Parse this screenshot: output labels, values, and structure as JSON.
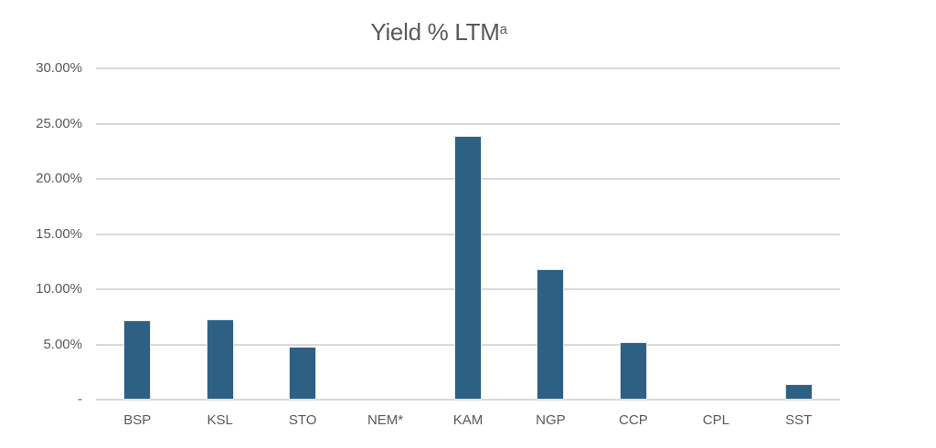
{
  "chart_data": {
    "type": "bar",
    "title": "Yield % LTM",
    "title_superscript": "a",
    "categories": [
      "BSP",
      "KSL",
      "STO",
      "NEM*",
      "KAM",
      "NGP",
      "CCP",
      "CPL",
      "SST"
    ],
    "values": [
      7.2,
      7.3,
      4.8,
      0,
      23.9,
      11.8,
      5.2,
      0,
      1.4
    ],
    "xlabel": "",
    "ylabel": "",
    "ylim": [
      0,
      30
    ],
    "yticks": [
      {
        "value": 30,
        "label": "30.00%"
      },
      {
        "value": 25,
        "label": "25.00%"
      },
      {
        "value": 20,
        "label": "20.00%"
      },
      {
        "value": 15,
        "label": "15.00%"
      },
      {
        "value": 10,
        "label": "10.00%"
      },
      {
        "value": 5,
        "label": "5.00%"
      },
      {
        "value": 0,
        "label": "-"
      }
    ],
    "grid": true,
    "legend": "none",
    "colors": {
      "bar": "#2d6083",
      "bar_edge": "#e2eaef",
      "gridline": "#d9d9d9",
      "axis_text": "#595959",
      "title_text": "#595959",
      "background": "#ffffff"
    }
  }
}
